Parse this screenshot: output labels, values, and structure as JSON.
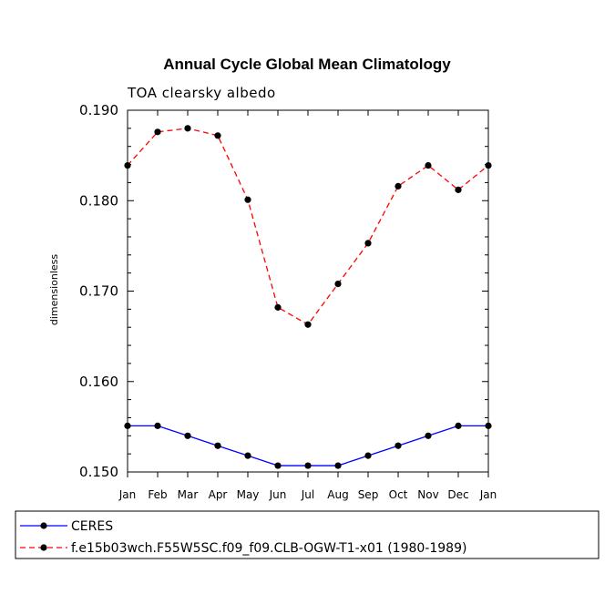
{
  "chart_data": {
    "type": "line",
    "title": "Annual Cycle Global Mean Climatology",
    "subtitle": "TOA clearsky albedo",
    "xlabel": "",
    "ylabel": "dimensionless",
    "categories": [
      "Jan",
      "Feb",
      "Mar",
      "Apr",
      "May",
      "Jun",
      "Jul",
      "Aug",
      "Sep",
      "Oct",
      "Nov",
      "Dec",
      "Jan"
    ],
    "ylim": [
      0.15,
      0.19
    ],
    "yticks": [
      0.15,
      0.16,
      0.17,
      0.18,
      0.19
    ],
    "ytick_labels": [
      "0.150",
      "0.160",
      "0.170",
      "0.180",
      "0.190"
    ],
    "series": [
      {
        "name": "CERES",
        "color": "#0000ff",
        "line_style": "solid",
        "values": [
          0.1551,
          0.1551,
          0.154,
          0.1529,
          0.1518,
          0.1507,
          0.1507,
          0.1507,
          0.1518,
          0.1529,
          0.154,
          0.1551,
          0.1551
        ]
      },
      {
        "name": "f.e15b03wch.F55W5SC.f09_f09.CLB-OGW-T1-x01 (1980-1989)",
        "color": "#ff0000",
        "line_style": "dashed",
        "values": [
          0.1839,
          0.1876,
          0.188,
          0.1872,
          0.1801,
          0.1682,
          0.1663,
          0.1708,
          0.1753,
          0.1816,
          0.1839,
          0.1812,
          0.1839
        ]
      }
    ],
    "grid": false,
    "legend_position": "bottom"
  }
}
